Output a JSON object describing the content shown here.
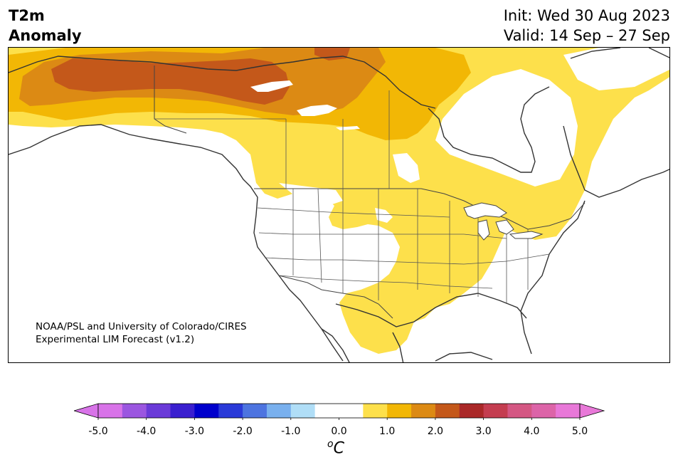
{
  "header": {
    "title_line1": "T2m",
    "title_line2": "Anomaly",
    "init": "Init: Wed 30 Aug 2023",
    "valid": "Valid: 14 Sep – 27 Sep"
  },
  "map": {
    "region": "North America",
    "credit_line1": "NOAA/PSL and University of Colorado/CIRES",
    "credit_line2": "Experimental LIM Forecast (v1.2)"
  },
  "colorbar": {
    "ticks": [
      "-5.0",
      "-4.0",
      "-3.0",
      "-2.0",
      "-1.0",
      "0.0",
      "1.0",
      "2.0",
      "3.0",
      "4.0",
      "5.0"
    ],
    "unit_super": "o",
    "unit_main": "C",
    "colors": [
      "#d873e8",
      "#9b56e0",
      "#6a3ad8",
      "#3a1fcf",
      "#0000cc",
      "#2a3ad8",
      "#4d74e0",
      "#79b0ee",
      "#b0def7",
      "#ffffff",
      "#ffffff",
      "#fde04b",
      "#f2b705",
      "#dc8a14",
      "#c4581a",
      "#aa2828",
      "#c43d50",
      "#d45783",
      "#dc64a8",
      "#e878d8"
    ]
  },
  "legend_colors": {
    "light_yellow": "#fde04b",
    "yellow_orange": "#f2b705",
    "orange": "#dc8a14",
    "dark_orange": "#c4581a"
  }
}
